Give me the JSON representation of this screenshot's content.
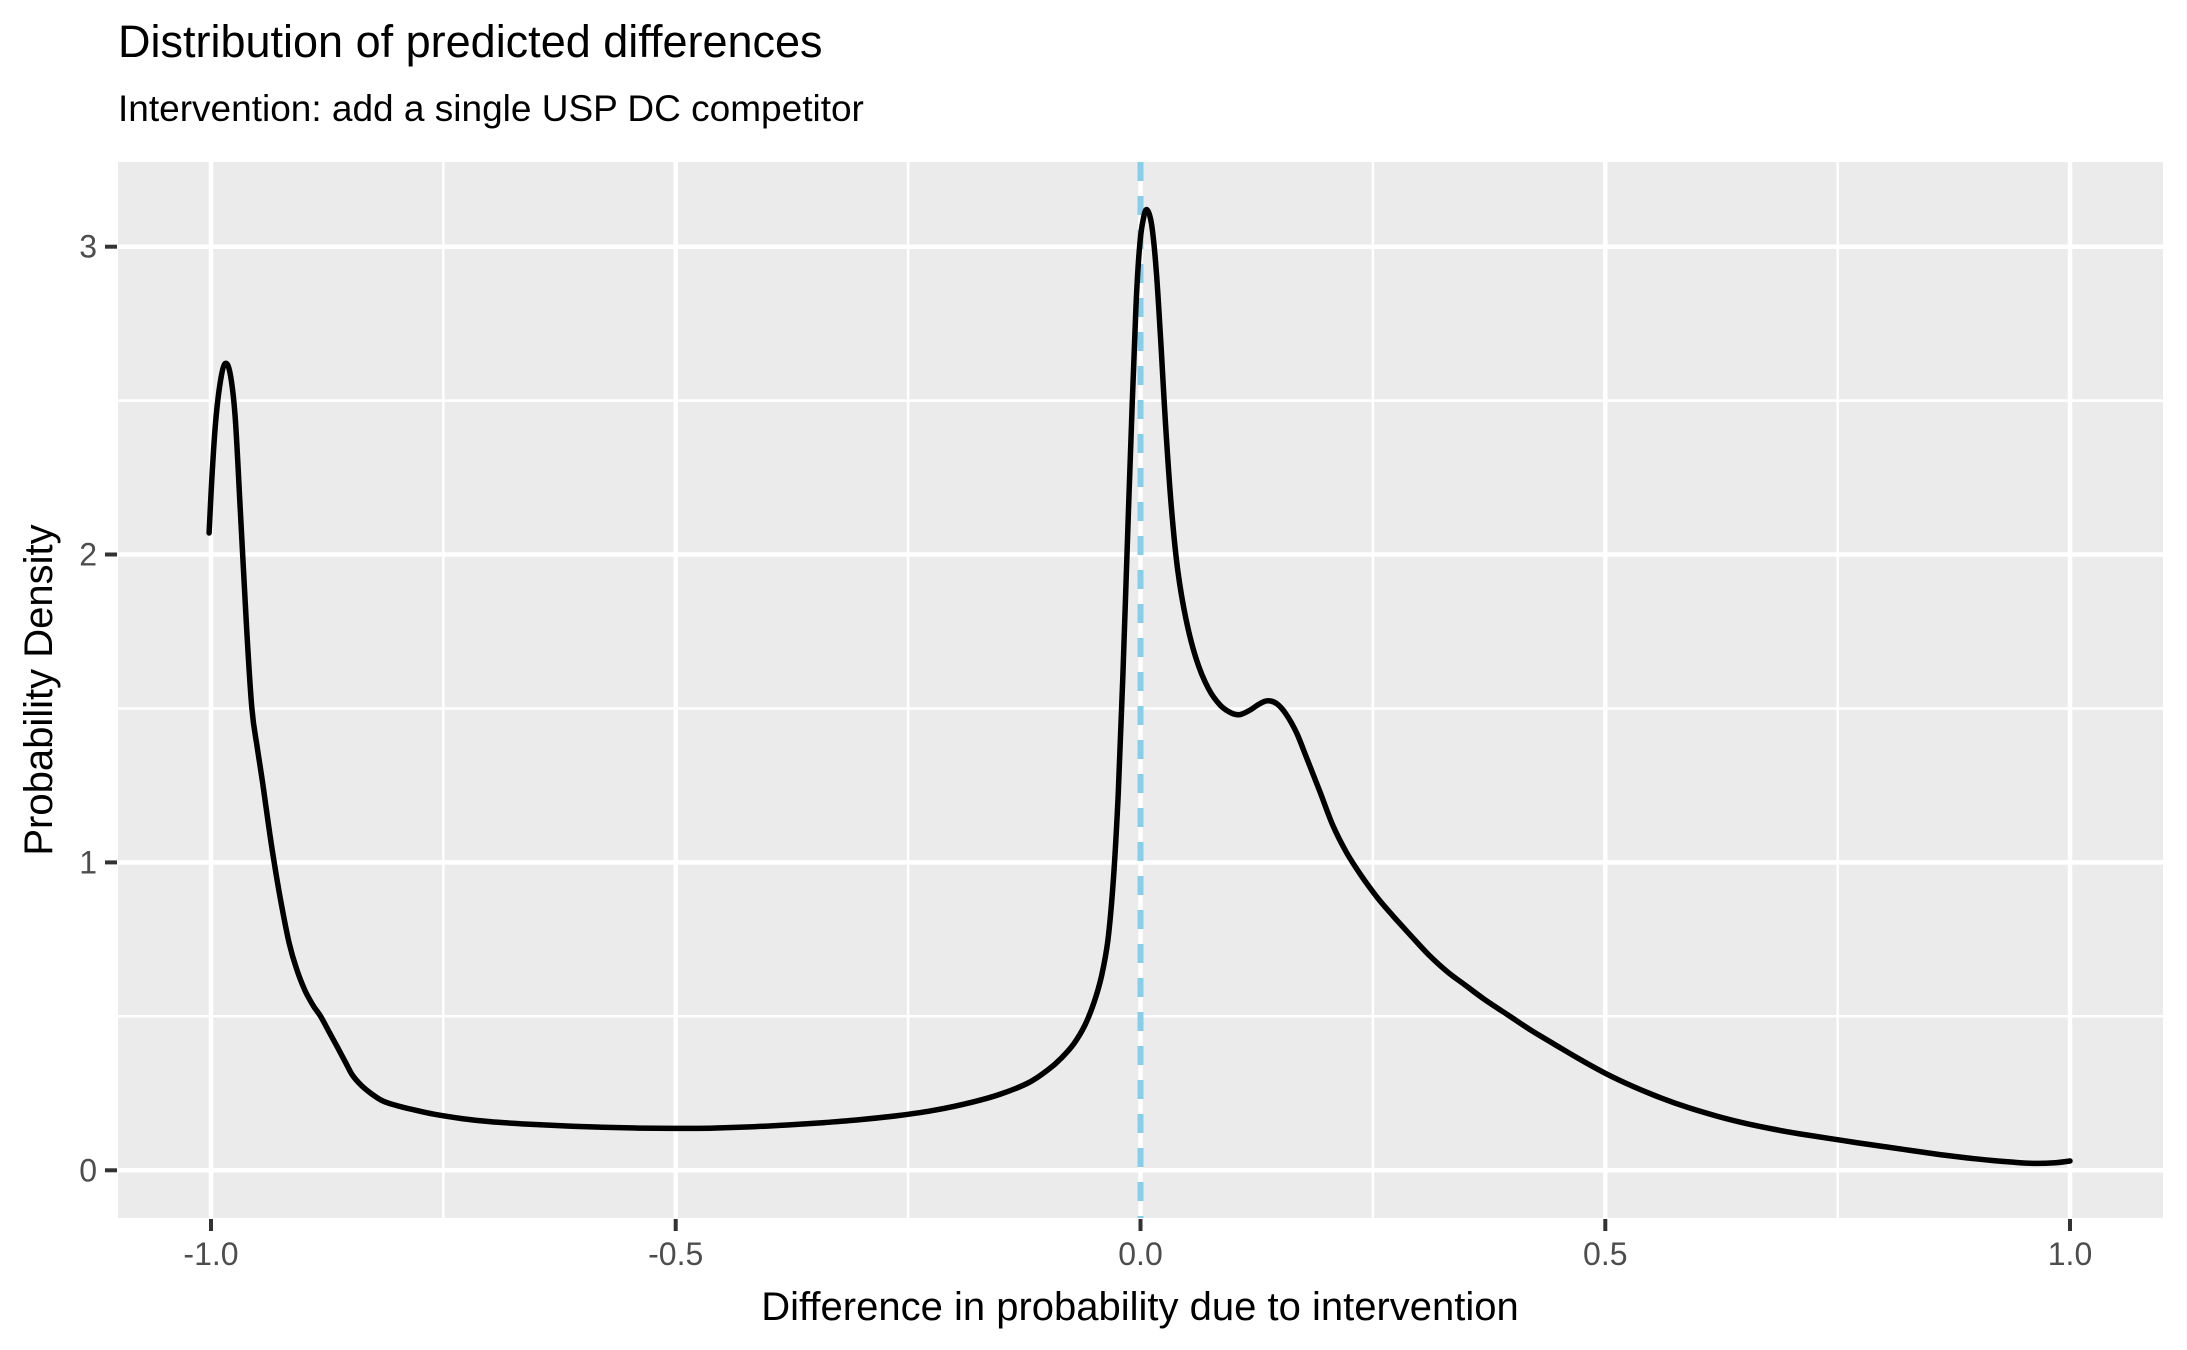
{
  "page": {
    "background": "#FFFFFF"
  },
  "chart_data": {
    "type": "line",
    "title": "Distribution of predicted differences",
    "subtitle": "Intervention: add a single USP DC competitor",
    "xlabel": "Difference in probability due to intervention",
    "ylabel": "Probability Density",
    "xlim": [
      -1.1,
      1.1
    ],
    "ylim": [
      -0.155,
      3.275
    ],
    "grid": true,
    "legend": "none",
    "x_ticks": [
      {
        "value": -1.0,
        "label": "-1.0"
      },
      {
        "value": -0.5,
        "label": "-0.5"
      },
      {
        "value": 0.0,
        "label": "0.0"
      },
      {
        "value": 0.5,
        "label": "0.5"
      },
      {
        "value": 1.0,
        "label": "1.0"
      }
    ],
    "x_minor_ticks": [
      -0.75,
      -0.25,
      0.25,
      0.75
    ],
    "y_ticks": [
      {
        "value": 0,
        "label": "0"
      },
      {
        "value": 1,
        "label": "1"
      },
      {
        "value": 2,
        "label": "2"
      },
      {
        "value": 3,
        "label": "3"
      }
    ],
    "y_minor_ticks": [
      0.5,
      1.5,
      2.5
    ],
    "reference_line": {
      "x": 0.0,
      "linetype": "dashed",
      "color": "#87CEEB"
    },
    "colors": {
      "panel_background": "#EBEBEB",
      "major_gridline": "#FFFFFF",
      "minor_gridline": "#FFFFFF",
      "curve": "#000000",
      "tick_mark": "#333333",
      "tick_label": "#4D4D4D",
      "title_text": "#000000"
    },
    "series": [
      {
        "name": "density of predicted probability differences",
        "color": "#000000",
        "points": [
          [
            -1.002,
            2.07
          ],
          [
            -0.999,
            2.25
          ],
          [
            -0.995,
            2.43
          ],
          [
            -0.99,
            2.56
          ],
          [
            -0.985,
            2.62
          ],
          [
            -0.9795,
            2.59
          ],
          [
            -0.974,
            2.45
          ],
          [
            -0.968,
            2.12
          ],
          [
            -0.962,
            1.78
          ],
          [
            -0.956,
            1.5
          ],
          [
            -0.95,
            1.37
          ],
          [
            -0.944,
            1.25
          ],
          [
            -0.938,
            1.12
          ],
          [
            -0.932,
            1.0
          ],
          [
            -0.924,
            0.86
          ],
          [
            -0.916,
            0.74
          ],
          [
            -0.908,
            0.655
          ],
          [
            -0.899,
            0.585
          ],
          [
            -0.89,
            0.535
          ],
          [
            -0.882,
            0.5
          ],
          [
            -0.873,
            0.45
          ],
          [
            -0.864,
            0.4
          ],
          [
            -0.856,
            0.355
          ],
          [
            -0.848,
            0.31
          ],
          [
            -0.838,
            0.275
          ],
          [
            -0.828,
            0.25
          ],
          [
            -0.815,
            0.225
          ],
          [
            -0.8,
            0.21
          ],
          [
            -0.78,
            0.195
          ],
          [
            -0.76,
            0.182
          ],
          [
            -0.73,
            0.168
          ],
          [
            -0.7,
            0.158
          ],
          [
            -0.66,
            0.15
          ],
          [
            -0.62,
            0.144
          ],
          [
            -0.58,
            0.14
          ],
          [
            -0.54,
            0.137
          ],
          [
            -0.5,
            0.136
          ],
          [
            -0.46,
            0.137
          ],
          [
            -0.42,
            0.141
          ],
          [
            -0.38,
            0.147
          ],
          [
            -0.34,
            0.155
          ],
          [
            -0.3,
            0.165
          ],
          [
            -0.26,
            0.178
          ],
          [
            -0.22,
            0.196
          ],
          [
            -0.18,
            0.222
          ],
          [
            -0.15,
            0.248
          ],
          [
            -0.12,
            0.285
          ],
          [
            -0.1,
            0.325
          ],
          [
            -0.085,
            0.365
          ],
          [
            -0.072,
            0.41
          ],
          [
            -0.06,
            0.47
          ],
          [
            -0.05,
            0.545
          ],
          [
            -0.042,
            0.63
          ],
          [
            -0.035,
            0.75
          ],
          [
            -0.029,
            0.95
          ],
          [
            -0.024,
            1.22
          ],
          [
            -0.019,
            1.6
          ],
          [
            -0.014,
            2.05
          ],
          [
            -0.009,
            2.48
          ],
          [
            -0.005,
            2.8
          ],
          [
            -0.001,
            3.0
          ],
          [
            0.003,
            3.09
          ],
          [
            0.007,
            3.12
          ],
          [
            0.012,
            3.07
          ],
          [
            0.017,
            2.92
          ],
          [
            0.022,
            2.68
          ],
          [
            0.027,
            2.42
          ],
          [
            0.033,
            2.16
          ],
          [
            0.04,
            1.95
          ],
          [
            0.049,
            1.79
          ],
          [
            0.06,
            1.66
          ],
          [
            0.073,
            1.565
          ],
          [
            0.086,
            1.51
          ],
          [
            0.098,
            1.485
          ],
          [
            0.107,
            1.48
          ],
          [
            0.118,
            1.495
          ],
          [
            0.128,
            1.515
          ],
          [
            0.137,
            1.525
          ],
          [
            0.147,
            1.515
          ],
          [
            0.157,
            1.48
          ],
          [
            0.168,
            1.42
          ],
          [
            0.18,
            1.33
          ],
          [
            0.193,
            1.23
          ],
          [
            0.207,
            1.12
          ],
          [
            0.222,
            1.03
          ],
          [
            0.238,
            0.955
          ],
          [
            0.255,
            0.885
          ],
          [
            0.272,
            0.825
          ],
          [
            0.29,
            0.765
          ],
          [
            0.31,
            0.7
          ],
          [
            0.33,
            0.645
          ],
          [
            0.35,
            0.6
          ],
          [
            0.37,
            0.555
          ],
          [
            0.395,
            0.505
          ],
          [
            0.42,
            0.455
          ],
          [
            0.445,
            0.41
          ],
          [
            0.47,
            0.365
          ],
          [
            0.5,
            0.315
          ],
          [
            0.53,
            0.272
          ],
          [
            0.56,
            0.235
          ],
          [
            0.59,
            0.203
          ],
          [
            0.62,
            0.176
          ],
          [
            0.65,
            0.153
          ],
          [
            0.68,
            0.134
          ],
          [
            0.71,
            0.118
          ],
          [
            0.74,
            0.104
          ],
          [
            0.77,
            0.09
          ],
          [
            0.8,
            0.077
          ],
          [
            0.83,
            0.064
          ],
          [
            0.86,
            0.051
          ],
          [
            0.89,
            0.04
          ],
          [
            0.915,
            0.032
          ],
          [
            0.94,
            0.026
          ],
          [
            0.962,
            0.0225
          ],
          [
            0.982,
            0.024
          ],
          [
            1.0,
            0.03
          ]
        ]
      }
    ]
  }
}
